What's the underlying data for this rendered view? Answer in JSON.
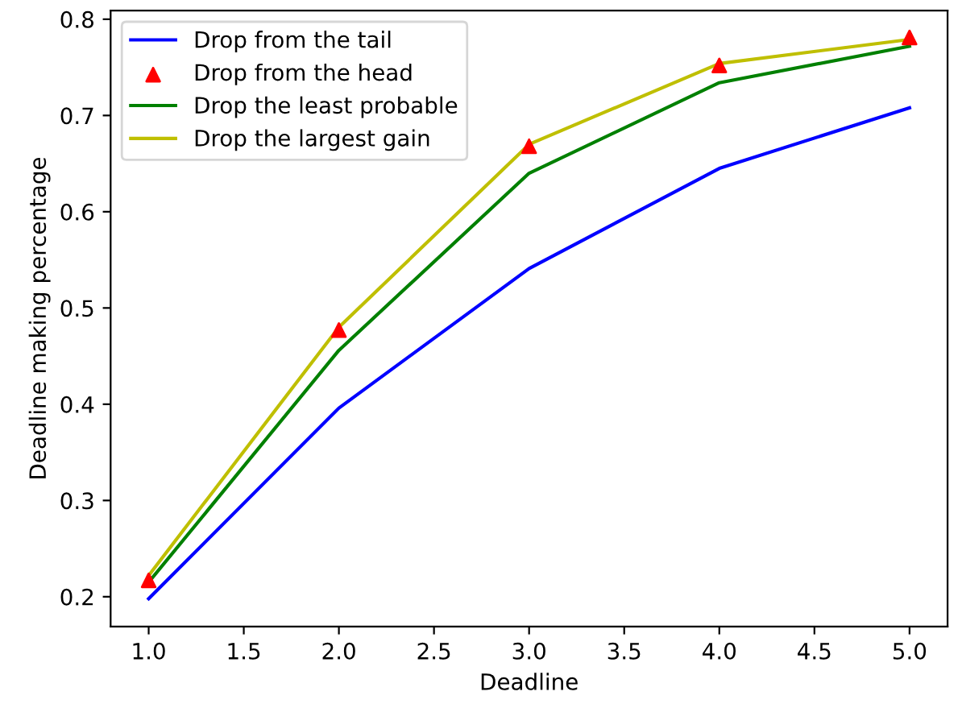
{
  "chart_data": {
    "type": "line",
    "xlabel": "Deadline",
    "ylabel": "Deadline making percentage",
    "x": [
      1.0,
      2.0,
      3.0,
      4.0,
      5.0
    ],
    "series": [
      {
        "name": "Drop from the tail",
        "color": "#0000ff",
        "values": [
          0.198,
          0.396,
          0.541,
          0.645,
          0.708
        ]
      },
      {
        "name": "Drop from the head",
        "color": "#ff0000",
        "type": "scatter",
        "marker": "triangle",
        "values": [
          0.217,
          0.477,
          0.668,
          0.752,
          0.781
        ]
      },
      {
        "name": "Drop the least probable",
        "color": "#008000",
        "values": [
          0.215,
          0.456,
          0.64,
          0.734,
          0.772
        ]
      },
      {
        "name": "Drop the largest gain",
        "color": "#bfbf00",
        "values": [
          0.222,
          0.48,
          0.67,
          0.754,
          0.779
        ]
      }
    ],
    "xlim": [
      0.8,
      5.2
    ],
    "ylim": [
      0.169,
      0.809
    ],
    "xticks": [
      {
        "value": 1.0,
        "label": "1.0"
      },
      1.5,
      {
        "value": 2.0,
        "label": "2.0"
      },
      2.5,
      {
        "value": 3.0,
        "label": "3.0"
      },
      3.5,
      {
        "value": 4.0,
        "label": "4.0"
      },
      4.5,
      {
        "value": 5.0,
        "label": "5.0"
      }
    ],
    "yticks": [
      0.2,
      0.3,
      0.4,
      0.5,
      0.6,
      0.7,
      0.8
    ],
    "legend": "top left",
    "grid": false
  }
}
